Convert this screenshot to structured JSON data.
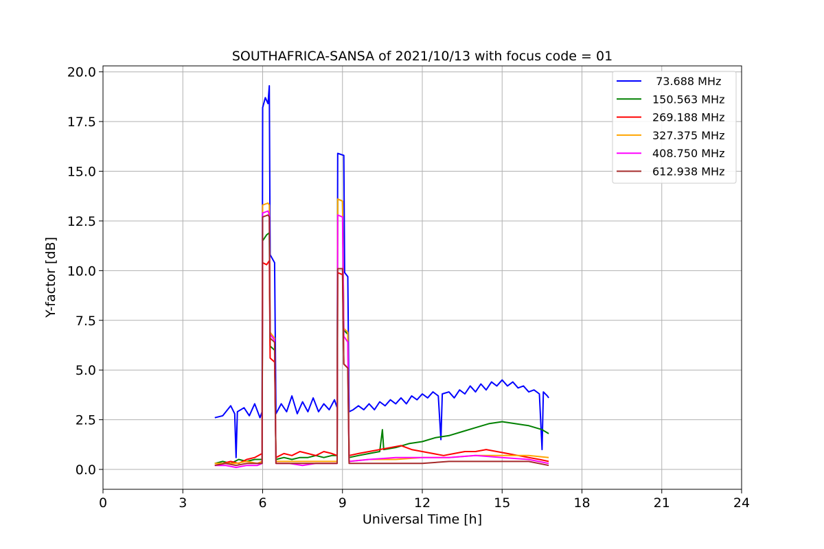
{
  "chart_data": {
    "type": "line",
    "title": "SOUTHAFRICA-SANSA of 2021/10/13 with focus code = 01",
    "xlabel": "Universal Time [h]",
    "ylabel": "Y-factor [dB]",
    "xlim": [
      0,
      24
    ],
    "ylim": [
      -1.0,
      20.3
    ],
    "x_ticks": [
      0,
      3,
      6,
      9,
      12,
      15,
      18,
      21,
      24
    ],
    "x_tick_labels": [
      "0",
      "3",
      "6",
      "9",
      "12",
      "15",
      "18",
      "21",
      "24"
    ],
    "y_ticks": [
      0,
      2.5,
      5,
      7.5,
      10,
      12.5,
      15,
      17.5,
      20
    ],
    "y_tick_labels": [
      "0.0",
      "2.5",
      "5.0",
      "7.5",
      "10.0",
      "12.5",
      "15.0",
      "17.5",
      "20.0"
    ],
    "grid": true,
    "legend_position": "top-right",
    "series": [
      {
        "name": " 73.688 MHz",
        "color": "#0000ff",
        "points": [
          [
            4.2,
            2.6
          ],
          [
            4.5,
            2.7
          ],
          [
            4.8,
            3.2
          ],
          [
            4.95,
            2.8
          ],
          [
            5.0,
            0.6
          ],
          [
            5.05,
            2.9
          ],
          [
            5.3,
            3.1
          ],
          [
            5.5,
            2.7
          ],
          [
            5.7,
            3.3
          ],
          [
            5.9,
            2.6
          ],
          [
            5.98,
            2.9
          ],
          [
            6.0,
            18.2
          ],
          [
            6.1,
            18.7
          ],
          [
            6.2,
            18.4
          ],
          [
            6.25,
            19.3
          ],
          [
            6.28,
            10.8
          ],
          [
            6.45,
            10.4
          ],
          [
            6.5,
            2.8
          ],
          [
            6.7,
            3.3
          ],
          [
            6.9,
            2.9
          ],
          [
            7.1,
            3.7
          ],
          [
            7.3,
            2.8
          ],
          [
            7.5,
            3.4
          ],
          [
            7.7,
            2.9
          ],
          [
            7.9,
            3.6
          ],
          [
            8.1,
            2.9
          ],
          [
            8.3,
            3.3
          ],
          [
            8.5,
            3.0
          ],
          [
            8.7,
            3.5
          ],
          [
            8.8,
            3.1
          ],
          [
            8.82,
            15.9
          ],
          [
            9.05,
            15.8
          ],
          [
            9.08,
            9.9
          ],
          [
            9.2,
            9.7
          ],
          [
            9.25,
            2.9
          ],
          [
            9.4,
            3.0
          ],
          [
            9.6,
            3.2
          ],
          [
            9.8,
            3.0
          ],
          [
            10.0,
            3.3
          ],
          [
            10.2,
            3.0
          ],
          [
            10.4,
            3.4
          ],
          [
            10.6,
            3.2
          ],
          [
            10.8,
            3.5
          ],
          [
            11.0,
            3.3
          ],
          [
            11.2,
            3.6
          ],
          [
            11.4,
            3.3
          ],
          [
            11.6,
            3.7
          ],
          [
            11.8,
            3.5
          ],
          [
            12.0,
            3.8
          ],
          [
            12.2,
            3.6
          ],
          [
            12.4,
            3.9
          ],
          [
            12.6,
            3.7
          ],
          [
            12.7,
            1.5
          ],
          [
            12.75,
            3.8
          ],
          [
            13.0,
            3.9
          ],
          [
            13.2,
            3.6
          ],
          [
            13.4,
            4.0
          ],
          [
            13.6,
            3.8
          ],
          [
            13.8,
            4.2
          ],
          [
            14.0,
            3.9
          ],
          [
            14.2,
            4.3
          ],
          [
            14.4,
            4.0
          ],
          [
            14.6,
            4.4
          ],
          [
            14.8,
            4.2
          ],
          [
            15.0,
            4.5
          ],
          [
            15.2,
            4.2
          ],
          [
            15.4,
            4.4
          ],
          [
            15.6,
            4.1
          ],
          [
            15.8,
            4.2
          ],
          [
            16.0,
            3.9
          ],
          [
            16.2,
            4.0
          ],
          [
            16.4,
            3.8
          ],
          [
            16.5,
            1.0
          ],
          [
            16.55,
            3.9
          ],
          [
            16.7,
            3.7
          ],
          [
            16.75,
            3.6
          ]
        ]
      },
      {
        "name": "150.563 MHz",
        "color": "#008000",
        "points": [
          [
            4.2,
            0.3
          ],
          [
            4.5,
            0.4
          ],
          [
            4.8,
            0.3
          ],
          [
            5.1,
            0.5
          ],
          [
            5.4,
            0.4
          ],
          [
            5.7,
            0.5
          ],
          [
            5.98,
            0.5
          ],
          [
            6.0,
            11.5
          ],
          [
            6.15,
            11.8
          ],
          [
            6.25,
            11.9
          ],
          [
            6.28,
            6.2
          ],
          [
            6.45,
            6.0
          ],
          [
            6.5,
            0.5
          ],
          [
            6.8,
            0.6
          ],
          [
            7.1,
            0.5
          ],
          [
            7.4,
            0.6
          ],
          [
            7.7,
            0.6
          ],
          [
            8.0,
            0.7
          ],
          [
            8.3,
            0.6
          ],
          [
            8.6,
            0.7
          ],
          [
            8.8,
            0.7
          ],
          [
            8.82,
            13.6
          ],
          [
            9.0,
            13.5
          ],
          [
            9.05,
            7.0
          ],
          [
            9.2,
            6.8
          ],
          [
            9.25,
            0.6
          ],
          [
            9.6,
            0.7
          ],
          [
            10.0,
            0.8
          ],
          [
            10.4,
            0.9
          ],
          [
            10.5,
            2.0
          ],
          [
            10.55,
            1.0
          ],
          [
            11.0,
            1.1
          ],
          [
            11.5,
            1.3
          ],
          [
            12.0,
            1.4
          ],
          [
            12.5,
            1.6
          ],
          [
            13.0,
            1.7
          ],
          [
            13.5,
            1.9
          ],
          [
            14.0,
            2.1
          ],
          [
            14.5,
            2.3
          ],
          [
            15.0,
            2.4
          ],
          [
            15.5,
            2.3
          ],
          [
            16.0,
            2.2
          ],
          [
            16.5,
            2.0
          ],
          [
            16.75,
            1.8
          ]
        ]
      },
      {
        "name": "269.188 MHz",
        "color": "#ff0000",
        "points": [
          [
            4.2,
            0.2
          ],
          [
            4.5,
            0.3
          ],
          [
            4.8,
            0.4
          ],
          [
            5.1,
            0.3
          ],
          [
            5.4,
            0.5
          ],
          [
            5.7,
            0.6
          ],
          [
            5.98,
            0.8
          ],
          [
            6.0,
            10.4
          ],
          [
            6.15,
            10.3
          ],
          [
            6.25,
            10.5
          ],
          [
            6.28,
            5.6
          ],
          [
            6.45,
            5.4
          ],
          [
            6.5,
            0.6
          ],
          [
            6.8,
            0.8
          ],
          [
            7.1,
            0.7
          ],
          [
            7.4,
            0.9
          ],
          [
            7.7,
            0.8
          ],
          [
            8.0,
            0.7
          ],
          [
            8.3,
            0.9
          ],
          [
            8.6,
            0.8
          ],
          [
            8.8,
            0.7
          ],
          [
            8.82,
            9.9
          ],
          [
            9.0,
            9.8
          ],
          [
            9.05,
            5.3
          ],
          [
            9.2,
            5.1
          ],
          [
            9.25,
            0.7
          ],
          [
            9.6,
            0.8
          ],
          [
            10.0,
            0.9
          ],
          [
            10.4,
            1.0
          ],
          [
            10.8,
            1.1
          ],
          [
            11.2,
            1.2
          ],
          [
            11.6,
            1.0
          ],
          [
            12.0,
            0.9
          ],
          [
            12.4,
            0.8
          ],
          [
            12.8,
            0.7
          ],
          [
            13.2,
            0.8
          ],
          [
            13.6,
            0.9
          ],
          [
            14.0,
            0.9
          ],
          [
            14.4,
            1.0
          ],
          [
            14.8,
            0.9
          ],
          [
            15.2,
            0.8
          ],
          [
            15.6,
            0.7
          ],
          [
            16.0,
            0.6
          ],
          [
            16.4,
            0.5
          ],
          [
            16.75,
            0.4
          ]
        ]
      },
      {
        "name": "327.375 MHz",
        "color": "#ffa500",
        "points": [
          [
            4.2,
            0.3
          ],
          [
            4.6,
            0.3
          ],
          [
            5.0,
            0.3
          ],
          [
            5.4,
            0.4
          ],
          [
            5.8,
            0.3
          ],
          [
            5.98,
            0.4
          ],
          [
            6.0,
            13.3
          ],
          [
            6.2,
            13.4
          ],
          [
            6.25,
            13.3
          ],
          [
            6.28,
            6.9
          ],
          [
            6.45,
            6.6
          ],
          [
            6.5,
            0.4
          ],
          [
            7.0,
            0.4
          ],
          [
            7.5,
            0.4
          ],
          [
            8.0,
            0.4
          ],
          [
            8.5,
            0.4
          ],
          [
            8.8,
            0.4
          ],
          [
            8.82,
            13.6
          ],
          [
            9.0,
            13.5
          ],
          [
            9.05,
            7.1
          ],
          [
            9.2,
            6.9
          ],
          [
            9.25,
            0.4
          ],
          [
            10.0,
            0.5
          ],
          [
            11.0,
            0.5
          ],
          [
            12.0,
            0.6
          ],
          [
            13.0,
            0.6
          ],
          [
            14.0,
            0.7
          ],
          [
            15.0,
            0.7
          ],
          [
            16.0,
            0.7
          ],
          [
            16.75,
            0.6
          ]
        ]
      },
      {
        "name": "408.750 MHz",
        "color": "#ff00ff",
        "points": [
          [
            4.2,
            0.2
          ],
          [
            4.6,
            0.2
          ],
          [
            5.0,
            0.1
          ],
          [
            5.4,
            0.2
          ],
          [
            5.8,
            0.2
          ],
          [
            5.98,
            0.3
          ],
          [
            6.0,
            12.9
          ],
          [
            6.2,
            13.0
          ],
          [
            6.25,
            12.8
          ],
          [
            6.28,
            6.8
          ],
          [
            6.45,
            6.5
          ],
          [
            6.5,
            0.3
          ],
          [
            7.0,
            0.3
          ],
          [
            7.5,
            0.2
          ],
          [
            8.0,
            0.3
          ],
          [
            8.5,
            0.3
          ],
          [
            8.8,
            0.3
          ],
          [
            8.82,
            12.8
          ],
          [
            9.0,
            12.7
          ],
          [
            9.05,
            6.7
          ],
          [
            9.2,
            6.4
          ],
          [
            9.25,
            0.4
          ],
          [
            10.0,
            0.5
          ],
          [
            11.0,
            0.6
          ],
          [
            12.0,
            0.6
          ],
          [
            13.0,
            0.6
          ],
          [
            14.0,
            0.7
          ],
          [
            15.0,
            0.6
          ],
          [
            16.0,
            0.5
          ],
          [
            16.75,
            0.3
          ]
        ]
      },
      {
        "name": "612.938 MHz",
        "color": "#a52a2a",
        "points": [
          [
            4.2,
            0.2
          ],
          [
            4.6,
            0.3
          ],
          [
            5.0,
            0.2
          ],
          [
            5.4,
            0.3
          ],
          [
            5.8,
            0.3
          ],
          [
            5.98,
            0.3
          ],
          [
            6.0,
            12.7
          ],
          [
            6.2,
            12.8
          ],
          [
            6.25,
            12.7
          ],
          [
            6.28,
            6.6
          ],
          [
            6.45,
            6.4
          ],
          [
            6.5,
            0.3
          ],
          [
            7.0,
            0.3
          ],
          [
            7.5,
            0.3
          ],
          [
            8.0,
            0.3
          ],
          [
            8.5,
            0.3
          ],
          [
            8.8,
            0.3
          ],
          [
            8.82,
            10.1
          ],
          [
            9.0,
            10.1
          ],
          [
            9.05,
            5.3
          ],
          [
            9.2,
            5.1
          ],
          [
            9.25,
            0.3
          ],
          [
            10.0,
            0.3
          ],
          [
            11.0,
            0.3
          ],
          [
            12.0,
            0.3
          ],
          [
            13.0,
            0.4
          ],
          [
            14.0,
            0.4
          ],
          [
            15.0,
            0.4
          ],
          [
            16.0,
            0.4
          ],
          [
            16.75,
            0.2
          ]
        ]
      }
    ]
  }
}
